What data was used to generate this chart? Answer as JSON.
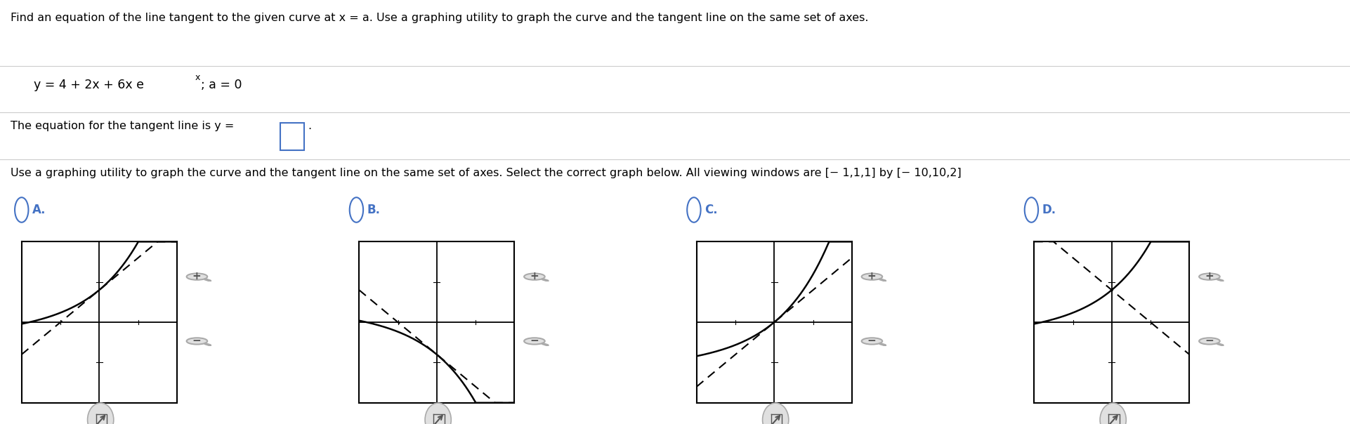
{
  "title_text": "Find an equation of the line tangent to the given curve at x = a. Use a graphing utility to graph the curve and the tangent line on the same set of axes.",
  "eq_part1": "y = 4 + 2x + 6x e",
  "eq_superscript": "x",
  "eq_part2": "; a = 0",
  "tangent_text": "The equation for the tangent line is y =",
  "second_instruction": "Use a graphing utility to graph the curve and the tangent line on the same set of axes. Select the correct graph below. All viewing windows are [− 1,1,1] by [− 10,10,2]",
  "options": [
    "A.",
    "B.",
    "C.",
    "D."
  ],
  "option_color": "#4472C4",
  "background_color": "#ffffff",
  "separator_color": "#cccccc",
  "text_color": "#000000",
  "input_box_color": "#4472C4",
  "curve_color": "#000000",
  "graph_bg": "#ffffff",
  "graph_border": "#000000",
  "magnifier_bg": "#e0e0e0",
  "magnifier_border": "#aaaaaa"
}
